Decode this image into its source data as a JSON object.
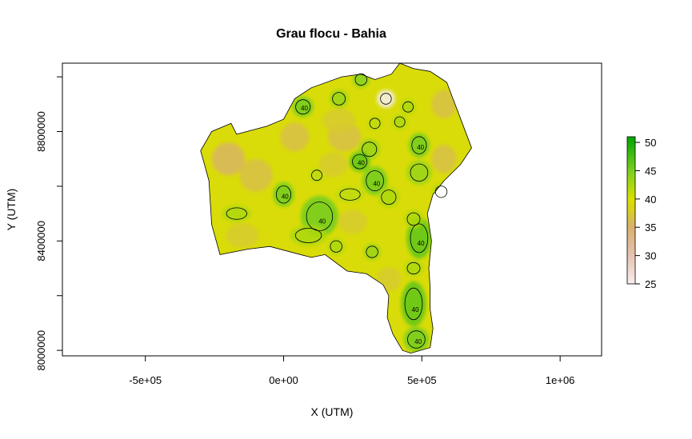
{
  "chart_data": {
    "type": "heatmap",
    "title": "Grau flocu - Bahia",
    "xlabel": "X (UTM)",
    "ylabel": "Y (UTM)",
    "xlim": [
      -800000,
      1150000
    ],
    "ylim": [
      7980000,
      9050000
    ],
    "x_ticks": [
      {
        "value": -500000,
        "label": "-5e+05"
      },
      {
        "value": 0,
        "label": "0e+00"
      },
      {
        "value": 500000,
        "label": "5e+05"
      },
      {
        "value": 1000000,
        "label": "1e+06"
      }
    ],
    "y_ticks": [
      {
        "value": 8000000,
        "label": "8000000"
      },
      {
        "value": 8400000,
        "label": "8400000"
      },
      {
        "value": 8800000,
        "label": "8800000"
      }
    ],
    "colorbar": {
      "min": 25,
      "max": 51,
      "ticks": [
        25,
        30,
        35,
        40,
        45,
        50
      ],
      "colors": [
        {
          "value": 25,
          "color": "#f6eeee"
        },
        {
          "value": 30,
          "color": "#e6c2b0"
        },
        {
          "value": 35,
          "color": "#d9b070"
        },
        {
          "value": 38,
          "color": "#d7d020"
        },
        {
          "value": 40,
          "color": "#d9e000"
        },
        {
          "value": 45,
          "color": "#7ccf20"
        },
        {
          "value": 51,
          "color": "#00a600"
        }
      ]
    },
    "contour_level": 40,
    "contour_labels": [
      "40",
      "40",
      "40",
      "40",
      "40",
      "40",
      "40",
      "40",
      "40",
      "40"
    ],
    "boundary": [
      [
        -300000,
        8730000
      ],
      [
        -260000,
        8800000
      ],
      [
        -190000,
        8830000
      ],
      [
        -170000,
        8790000
      ],
      [
        -60000,
        8820000
      ],
      [
        0,
        8845000
      ],
      [
        40000,
        8920000
      ],
      [
        100000,
        8960000
      ],
      [
        210000,
        9000000
      ],
      [
        280000,
        9010000
      ],
      [
        330000,
        8990000
      ],
      [
        390000,
        9010000
      ],
      [
        420000,
        9050000
      ],
      [
        470000,
        9030000
      ],
      [
        530000,
        9020000
      ],
      [
        590000,
        8980000
      ],
      [
        650000,
        8820000
      ],
      [
        680000,
        8740000
      ],
      [
        640000,
        8680000
      ],
      [
        580000,
        8620000
      ],
      [
        540000,
        8570000
      ],
      [
        520000,
        8500000
      ],
      [
        535000,
        8400000
      ],
      [
        525000,
        8300000
      ],
      [
        530000,
        8230000
      ],
      [
        530000,
        8150000
      ],
      [
        540000,
        8080000
      ],
      [
        530000,
        8010000
      ],
      [
        460000,
        7990000
      ],
      [
        430000,
        8000000
      ],
      [
        395000,
        8060000
      ],
      [
        375000,
        8120000
      ],
      [
        380000,
        8200000
      ],
      [
        360000,
        8240000
      ],
      [
        300000,
        8280000
      ],
      [
        230000,
        8290000
      ],
      [
        150000,
        8350000
      ],
      [
        100000,
        8340000
      ],
      [
        -50000,
        8380000
      ],
      [
        -130000,
        8370000
      ],
      [
        -230000,
        8350000
      ],
      [
        -260000,
        8460000
      ],
      [
        -270000,
        8620000
      ],
      [
        -300000,
        8730000
      ]
    ],
    "field_anomalies": [
      {
        "x": 70000,
        "y": 8890000,
        "delta": 6,
        "sx": 25000,
        "sy": 25000
      },
      {
        "x": 200000,
        "y": 8920000,
        "delta": 4,
        "sx": 22000,
        "sy": 22000
      },
      {
        "x": 280000,
        "y": 8990000,
        "delta": 5,
        "sx": 20000,
        "sy": 20000
      },
      {
        "x": 370000,
        "y": 8920000,
        "delta": -15,
        "sx": 22000,
        "sy": 22000
      },
      {
        "x": 450000,
        "y": 8890000,
        "delta": 3,
        "sx": 18000,
        "sy": 18000
      },
      {
        "x": 330000,
        "y": 8830000,
        "delta": 2,
        "sx": 18000,
        "sy": 18000
      },
      {
        "x": 420000,
        "y": 8835000,
        "delta": 3,
        "sx": 18000,
        "sy": 18000
      },
      {
        "x": 310000,
        "y": 8735000,
        "delta": 4,
        "sx": 25000,
        "sy": 25000
      },
      {
        "x": 490000,
        "y": 8750000,
        "delta": 6,
        "sx": 25000,
        "sy": 30000
      },
      {
        "x": 275000,
        "y": 8690000,
        "delta": 7,
        "sx": 25000,
        "sy": 25000
      },
      {
        "x": 330000,
        "y": 8620000,
        "delta": 6,
        "sx": 30000,
        "sy": 35000
      },
      {
        "x": 380000,
        "y": 8560000,
        "delta": 3,
        "sx": 25000,
        "sy": 25000
      },
      {
        "x": 490000,
        "y": 8650000,
        "delta": 4,
        "sx": 30000,
        "sy": 30000
      },
      {
        "x": 570000,
        "y": 8580000,
        "delta": 3,
        "sx": 20000,
        "sy": 20000
      },
      {
        "x": 240000,
        "y": 8570000,
        "delta": 2,
        "sx": 35000,
        "sy": 20000
      },
      {
        "x": 120000,
        "y": 8640000,
        "delta": 2,
        "sx": 18000,
        "sy": 18000
      },
      {
        "x": 0,
        "y": 8570000,
        "delta": 6,
        "sx": 25000,
        "sy": 30000
      },
      {
        "x": -170000,
        "y": 8500000,
        "delta": 3,
        "sx": 35000,
        "sy": 20000
      },
      {
        "x": 130000,
        "y": 8490000,
        "delta": 6,
        "sx": 45000,
        "sy": 50000
      },
      {
        "x": 90000,
        "y": 8420000,
        "delta": 3,
        "sx": 45000,
        "sy": 25000
      },
      {
        "x": 190000,
        "y": 8380000,
        "delta": 3,
        "sx": 20000,
        "sy": 20000
      },
      {
        "x": 320000,
        "y": 8360000,
        "delta": 4,
        "sx": 20000,
        "sy": 20000
      },
      {
        "x": 490000,
        "y": 8410000,
        "delta": 7,
        "sx": 30000,
        "sy": 50000
      },
      {
        "x": 470000,
        "y": 8480000,
        "delta": 3,
        "sx": 22000,
        "sy": 22000
      },
      {
        "x": 470000,
        "y": 8300000,
        "delta": 3,
        "sx": 22000,
        "sy": 20000
      },
      {
        "x": 470000,
        "y": 8170000,
        "delta": 7,
        "sx": 30000,
        "sy": 55000
      },
      {
        "x": 480000,
        "y": 8040000,
        "delta": 6,
        "sx": 30000,
        "sy": 30000
      },
      {
        "x": -200000,
        "y": 8700000,
        "delta": -4,
        "sx": 40000,
        "sy": 40000
      },
      {
        "x": -100000,
        "y": 8640000,
        "delta": -3,
        "sx": 40000,
        "sy": 40000
      },
      {
        "x": 40000,
        "y": 8780000,
        "delta": -3,
        "sx": 35000,
        "sy": 35000
      },
      {
        "x": 220000,
        "y": 8780000,
        "delta": -3,
        "sx": 40000,
        "sy": 35000
      },
      {
        "x": 200000,
        "y": 8840000,
        "delta": -2,
        "sx": 40000,
        "sy": 30000
      },
      {
        "x": 580000,
        "y": 8900000,
        "delta": -3,
        "sx": 30000,
        "sy": 35000
      },
      {
        "x": 580000,
        "y": 8700000,
        "delta": -3,
        "sx": 30000,
        "sy": 35000
      },
      {
        "x": 180000,
        "y": 8680000,
        "delta": -2,
        "sx": 35000,
        "sy": 30000
      },
      {
        "x": -150000,
        "y": 8420000,
        "delta": -2,
        "sx": 40000,
        "sy": 30000
      },
      {
        "x": 250000,
        "y": 8470000,
        "delta": -2,
        "sx": 35000,
        "sy": 30000
      },
      {
        "x": 380000,
        "y": 8260000,
        "delta": -2,
        "sx": 30000,
        "sy": 30000
      }
    ]
  }
}
